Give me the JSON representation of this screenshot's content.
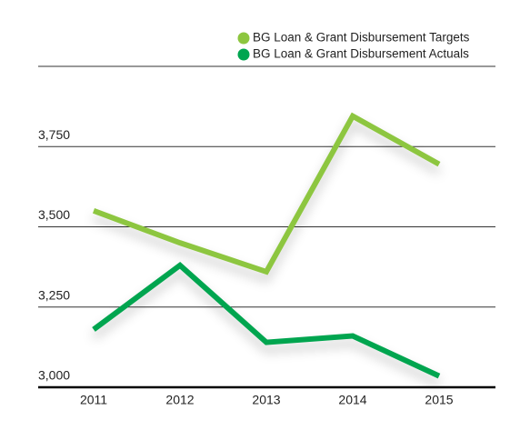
{
  "chart_data": {
    "type": "line",
    "categories": [
      "2011",
      "2012",
      "2013",
      "2014",
      "2015"
    ],
    "series": [
      {
        "name": "BG Loan & Grant Disbursement Targets",
        "color": "#8dc63f",
        "values": [
          3550,
          3450,
          3360,
          3845,
          3695
        ]
      },
      {
        "name": "BG Loan & Grant Disbursement Actuals",
        "color": "#00a550",
        "values": [
          3180,
          3380,
          3140,
          3160,
          3035
        ]
      }
    ],
    "ylim": [
      3000,
      4000
    ],
    "yticks": [
      {
        "value": 3000,
        "label": "3,000"
      },
      {
        "value": 3250,
        "label": "3,250"
      },
      {
        "value": 3500,
        "label": "3,500"
      },
      {
        "value": 3750,
        "label": "3,750"
      }
    ],
    "grid": true
  }
}
